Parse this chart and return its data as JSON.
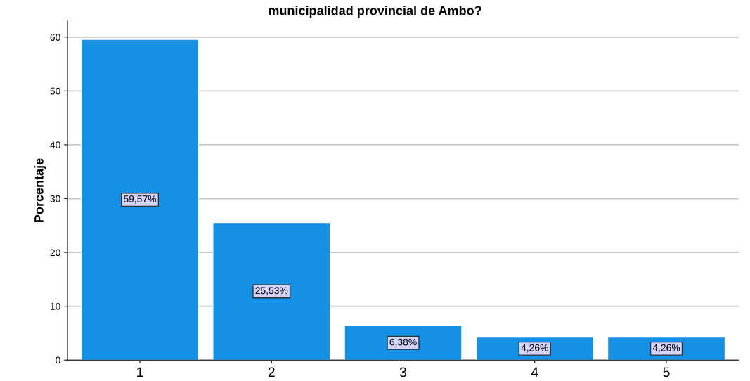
{
  "chart_data": {
    "type": "bar",
    "title": "municipalidad provincial de Ambo?",
    "ylabel": "Porcentaje",
    "categories": [
      "1",
      "2",
      "3",
      "4",
      "5"
    ],
    "values": [
      59.57,
      25.53,
      6.38,
      4.26,
      4.26
    ],
    "value_labels": [
      "59,57%",
      "25,53%",
      "6,38%",
      "4,26%",
      "4,26%"
    ],
    "color": "#1490e4",
    "ylim": [
      0,
      63
    ],
    "yticks": [
      0,
      10,
      20,
      30,
      40,
      50,
      60
    ],
    "grid": "y"
  }
}
